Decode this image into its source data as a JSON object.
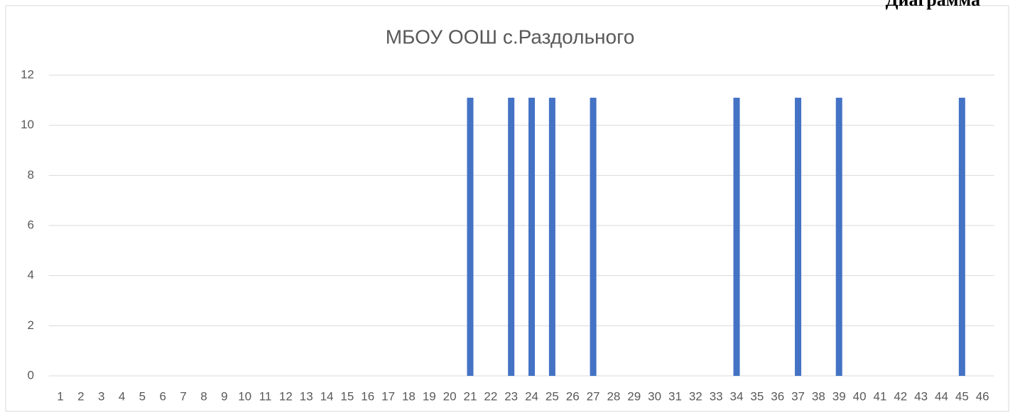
{
  "chart_data": {
    "type": "bar",
    "header": "Диаграмма",
    "title": "МБОУ ООШ с.Раздольного",
    "categories": [
      "1",
      "2",
      "3",
      "4",
      "5",
      "6",
      "7",
      "8",
      "9",
      "10",
      "11",
      "12",
      "13",
      "14",
      "15",
      "16",
      "17",
      "18",
      "19",
      "20",
      "21",
      "22",
      "23",
      "24",
      "25",
      "26",
      "27",
      "28",
      "29",
      "30",
      "31",
      "32",
      "33",
      "34",
      "35",
      "36",
      "37",
      "38",
      "39",
      "40",
      "41",
      "42",
      "43",
      "44",
      "45",
      "46"
    ],
    "values": [
      0,
      0,
      0,
      0,
      0,
      0,
      0,
      0,
      0,
      0,
      0,
      0,
      0,
      0,
      0,
      0,
      0,
      0,
      0,
      0,
      11.1,
      0,
      11.1,
      11.1,
      11.1,
      0,
      11.1,
      0,
      0,
      0,
      0,
      0,
      0,
      11.1,
      0,
      0,
      11.1,
      0,
      11.1,
      0,
      0,
      0,
      0,
      0,
      11.1,
      0
    ],
    "color": "#4472c4",
    "ylim": [
      0,
      12
    ],
    "yticks": [
      0,
      2,
      4,
      6,
      8,
      10,
      12
    ],
    "grid": true
  }
}
